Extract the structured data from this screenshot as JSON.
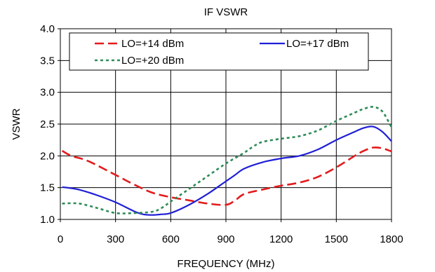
{
  "chart_data": {
    "type": "line",
    "title": "IF VSWR",
    "xlabel": "FREQUENCY (MHz)",
    "ylabel": "VSWR",
    "xlim": [
      0,
      1800
    ],
    "ylim": [
      1.0,
      4.0
    ],
    "xticks": [
      0,
      300,
      600,
      900,
      1200,
      1500,
      1800
    ],
    "yticks": [
      "1.0",
      "1.5",
      "2.0",
      "2.5",
      "3.0",
      "3.5",
      "4.0"
    ],
    "grid": true,
    "legend_position": "top",
    "series": [
      {
        "name": "LO=+14 dBm",
        "color": "#e31a1c",
        "dash": "long-dash",
        "points": [
          [
            10,
            2.08
          ],
          [
            60,
            2.0
          ],
          [
            150,
            1.92
          ],
          [
            300,
            1.7
          ],
          [
            400,
            1.55
          ],
          [
            500,
            1.42
          ],
          [
            600,
            1.35
          ],
          [
            700,
            1.3
          ],
          [
            800,
            1.25
          ],
          [
            900,
            1.23
          ],
          [
            950,
            1.3
          ],
          [
            1000,
            1.4
          ],
          [
            1100,
            1.47
          ],
          [
            1200,
            1.53
          ],
          [
            1300,
            1.58
          ],
          [
            1400,
            1.67
          ],
          [
            1500,
            1.82
          ],
          [
            1600,
            2.0
          ],
          [
            1650,
            2.08
          ],
          [
            1700,
            2.13
          ],
          [
            1750,
            2.12
          ],
          [
            1800,
            2.07
          ]
        ]
      },
      {
        "name": "LO=+17 dBm",
        "color": "#1f1fd6",
        "dash": "solid",
        "points": [
          [
            10,
            1.51
          ],
          [
            100,
            1.47
          ],
          [
            200,
            1.38
          ],
          [
            300,
            1.27
          ],
          [
            400,
            1.13
          ],
          [
            450,
            1.08
          ],
          [
            500,
            1.07
          ],
          [
            550,
            1.08
          ],
          [
            600,
            1.1
          ],
          [
            700,
            1.23
          ],
          [
            800,
            1.4
          ],
          [
            900,
            1.6
          ],
          [
            950,
            1.7
          ],
          [
            1000,
            1.8
          ],
          [
            1100,
            1.9
          ],
          [
            1200,
            1.96
          ],
          [
            1300,
            2.0
          ],
          [
            1400,
            2.1
          ],
          [
            1500,
            2.25
          ],
          [
            1600,
            2.38
          ],
          [
            1650,
            2.44
          ],
          [
            1700,
            2.46
          ],
          [
            1750,
            2.38
          ],
          [
            1800,
            2.23
          ]
        ]
      },
      {
        "name": "LO=+20 dBm",
        "color": "#2e8b57",
        "dash": "short-dash",
        "points": [
          [
            10,
            1.25
          ],
          [
            100,
            1.25
          ],
          [
            200,
            1.18
          ],
          [
            300,
            1.1
          ],
          [
            400,
            1.1
          ],
          [
            500,
            1.12
          ],
          [
            550,
            1.18
          ],
          [
            600,
            1.28
          ],
          [
            700,
            1.48
          ],
          [
            800,
            1.68
          ],
          [
            900,
            1.88
          ],
          [
            1000,
            2.05
          ],
          [
            1050,
            2.15
          ],
          [
            1100,
            2.22
          ],
          [
            1200,
            2.27
          ],
          [
            1300,
            2.31
          ],
          [
            1400,
            2.4
          ],
          [
            1500,
            2.55
          ],
          [
            1600,
            2.68
          ],
          [
            1650,
            2.74
          ],
          [
            1700,
            2.77
          ],
          [
            1750,
            2.7
          ],
          [
            1800,
            2.45
          ]
        ]
      }
    ]
  }
}
